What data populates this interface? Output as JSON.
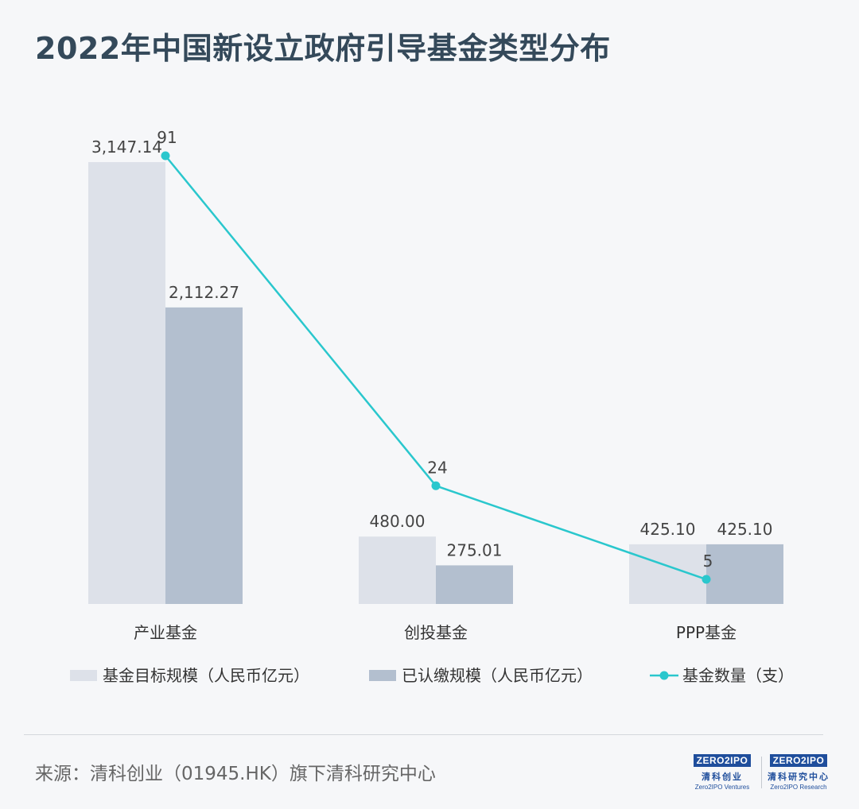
{
  "title": "2022年中国新设立政府引导基金类型分布",
  "chart_data": {
    "type": "bar",
    "categories": [
      "产业基金",
      "创投基金",
      "PPP基金"
    ],
    "series": [
      {
        "name": "基金目标规模（人民币亿元）",
        "kind": "bar",
        "axis": "left",
        "values": [
          3147.14,
          480.0,
          425.1
        ],
        "labels": [
          "3,147.14",
          "480.00",
          "425.10"
        ],
        "color": "#dde1e9"
      },
      {
        "name": "已认缴规模（人民币亿元）",
        "kind": "bar",
        "axis": "left",
        "values": [
          2112.27,
          275.01,
          425.1
        ],
        "labels": [
          "2,112.27",
          "275.01",
          "425.10"
        ],
        "color": "#b3bfcf"
      },
      {
        "name": "基金数量（支）",
        "kind": "line",
        "axis": "right",
        "values": [
          91,
          24,
          5
        ],
        "labels": [
          "91",
          "24",
          "5"
        ],
        "color": "#2ac7cd"
      }
    ],
    "ylim_left": [
      0,
      3200
    ],
    "ylim_right": [
      0,
      100
    ],
    "legend": "bottom",
    "grid": false
  },
  "footer": {
    "source": "来源：清科创业（01945.HK）旗下清科研究中心",
    "logos": [
      {
        "word": "ZERO2IPO",
        "cn": "清科创业",
        "en": "Zero2IPO Ventures"
      },
      {
        "word": "ZERO2IPO",
        "cn": "清科研究中心",
        "en": "Zero2IPO Research"
      }
    ]
  }
}
